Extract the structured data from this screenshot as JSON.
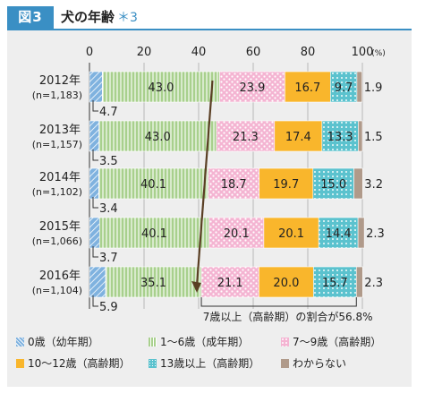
{
  "figure": {
    "tag": "図3",
    "title": "犬の年齢",
    "title_note": "＊3"
  },
  "colors": {
    "age0": "#7fb2df",
    "age1_6": "#a8d08d",
    "age7_9": "#f4b4d2",
    "age10_12": "#f9b62c",
    "age13": "#5bc2ce",
    "unknown": "#b09a8a",
    "accent": "#3a8fc4",
    "arrow": "#5a3f24"
  },
  "chart_data": {
    "type": "bar",
    "orientation": "horizontal",
    "stacked": true,
    "unit": "(%)",
    "xlim": [
      0,
      100
    ],
    "xticks": [
      "0",
      "20",
      "40",
      "60",
      "80",
      "100"
    ],
    "categories": [
      "2012年",
      "2013年",
      "2014年",
      "2015年",
      "2016年"
    ],
    "sample_sizes": [
      "(n=1,183)",
      "(n=1,157)",
      "(n=1,102)",
      "(n=1,066)",
      "(n=1,104)"
    ],
    "series": [
      {
        "name": "0歳（幼年期）",
        "values": [
          4.7,
          3.5,
          3.4,
          3.7,
          5.9
        ],
        "labels": [
          "4.7",
          "3.5",
          "3.4",
          "3.7",
          "5.9"
        ]
      },
      {
        "name": "1〜6歳（成年期）",
        "values": [
          43.0,
          43.0,
          40.1,
          40.1,
          35.1
        ],
        "labels": [
          "43.0",
          "43.0",
          "40.1",
          "40.1",
          "35.1"
        ]
      },
      {
        "name": "7〜9歳（高齢期）",
        "values": [
          23.9,
          21.3,
          18.7,
          20.1,
          21.1
        ],
        "labels": [
          "23.9",
          "21.3",
          "18.7",
          "20.1",
          "21.1"
        ]
      },
      {
        "name": "10〜12歳（高齢期）",
        "values": [
          16.7,
          17.4,
          19.7,
          20.1,
          20.0
        ],
        "labels": [
          "16.7",
          "17.4",
          "19.7",
          "20.1",
          "20.0"
        ]
      },
      {
        "name": "13歳以上（高齢期）",
        "values": [
          9.7,
          13.3,
          15.0,
          14.4,
          15.7
        ],
        "labels": [
          "9.7",
          "13.3",
          "15.0",
          "14.4",
          "15.7"
        ]
      },
      {
        "name": "わからない",
        "values": [
          1.9,
          1.5,
          3.2,
          2.3,
          2.3
        ],
        "labels": [
          "1.9",
          "1.5",
          "3.2",
          "2.3",
          "2.3"
        ]
      }
    ],
    "annotation": "7歳以上（高齢期）の割合が56.8%",
    "grid": true,
    "legend_position": "bottom"
  }
}
